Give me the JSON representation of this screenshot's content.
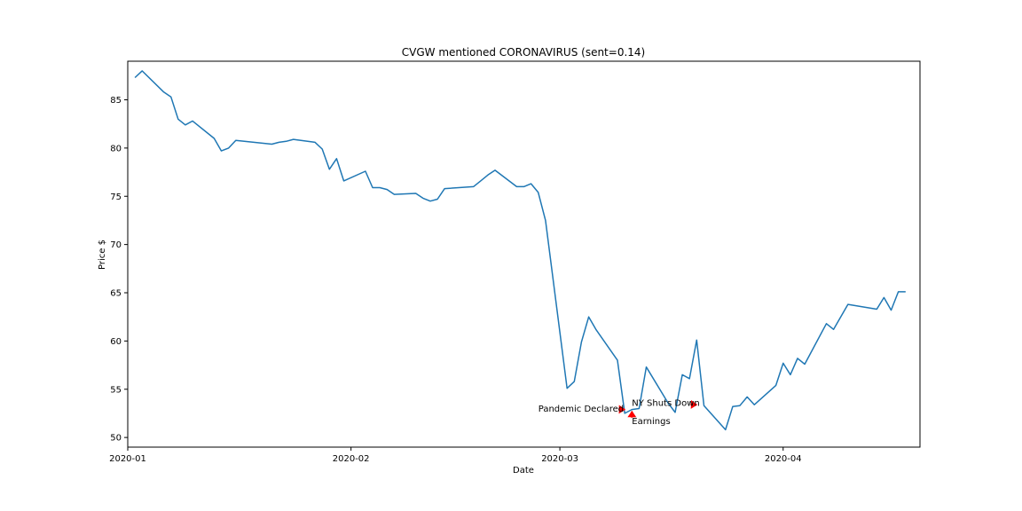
{
  "chart_data": {
    "type": "line",
    "title": "CVGW mentioned CORONAVIRUS (sent=0.14)",
    "xlabel": "Date",
    "ylabel": "Price $",
    "xlim": [
      "2020-01-01",
      "2020-04-20"
    ],
    "ylim": [
      49,
      89
    ],
    "grid": false,
    "legend": "none",
    "x_ticks": [
      {
        "date": "2020-01-01",
        "label": "2020-01"
      },
      {
        "date": "2020-02-01",
        "label": "2020-02"
      },
      {
        "date": "2020-03-01",
        "label": "2020-03"
      },
      {
        "date": "2020-04-01",
        "label": "2020-04"
      }
    ],
    "y_ticks": [
      50,
      55,
      60,
      65,
      70,
      75,
      80,
      85
    ],
    "series": [
      {
        "color": "#1f77b4",
        "points": [
          [
            "2020-01-02",
            87.3
          ],
          [
            "2020-01-03",
            88.0
          ],
          [
            "2020-01-06",
            85.8
          ],
          [
            "2020-01-07",
            85.3
          ],
          [
            "2020-01-08",
            83.0
          ],
          [
            "2020-01-09",
            82.4
          ],
          [
            "2020-01-10",
            82.8
          ],
          [
            "2020-01-13",
            81.0
          ],
          [
            "2020-01-14",
            79.7
          ],
          [
            "2020-01-15",
            80.0
          ],
          [
            "2020-01-16",
            80.8
          ],
          [
            "2020-01-21",
            80.4
          ],
          [
            "2020-01-22",
            80.6
          ],
          [
            "2020-01-23",
            80.7
          ],
          [
            "2020-01-24",
            80.9
          ],
          [
            "2020-01-27",
            80.6
          ],
          [
            "2020-01-28",
            79.9
          ],
          [
            "2020-01-29",
            77.8
          ],
          [
            "2020-01-30",
            78.9
          ],
          [
            "2020-01-31",
            76.6
          ],
          [
            "2020-02-03",
            77.6
          ],
          [
            "2020-02-04",
            75.9
          ],
          [
            "2020-02-05",
            75.9
          ],
          [
            "2020-02-06",
            75.7
          ],
          [
            "2020-02-07",
            75.2
          ],
          [
            "2020-02-10",
            75.3
          ],
          [
            "2020-02-11",
            74.8
          ],
          [
            "2020-02-12",
            74.5
          ],
          [
            "2020-02-13",
            74.7
          ],
          [
            "2020-02-14",
            75.8
          ],
          [
            "2020-02-18",
            76.0
          ],
          [
            "2020-02-19",
            76.6
          ],
          [
            "2020-02-20",
            77.2
          ],
          [
            "2020-02-21",
            77.7
          ],
          [
            "2020-02-24",
            76.0
          ],
          [
            "2020-02-25",
            76.0
          ],
          [
            "2020-02-26",
            76.3
          ],
          [
            "2020-02-27",
            75.4
          ],
          [
            "2020-02-28",
            72.5
          ],
          [
            "2020-03-02",
            55.1
          ],
          [
            "2020-03-03",
            55.8
          ],
          [
            "2020-03-04",
            59.9
          ],
          [
            "2020-03-05",
            62.5
          ],
          [
            "2020-03-06",
            61.2
          ],
          [
            "2020-03-09",
            58.0
          ],
          [
            "2020-03-10",
            52.5
          ],
          [
            "2020-03-11",
            52.9
          ],
          [
            "2020-03-12",
            53.0
          ],
          [
            "2020-03-13",
            57.3
          ],
          [
            "2020-03-16",
            53.6
          ],
          [
            "2020-03-17",
            52.6
          ],
          [
            "2020-03-18",
            56.5
          ],
          [
            "2020-03-19",
            56.1
          ],
          [
            "2020-03-20",
            60.1
          ],
          [
            "2020-03-21",
            53.3
          ],
          [
            "2020-03-24",
            50.8
          ],
          [
            "2020-03-25",
            53.2
          ],
          [
            "2020-03-26",
            53.3
          ],
          [
            "2020-03-27",
            54.2
          ],
          [
            "2020-03-28",
            53.4
          ],
          [
            "2020-03-31",
            55.4
          ],
          [
            "2020-04-01",
            57.7
          ],
          [
            "2020-04-02",
            56.5
          ],
          [
            "2020-04-03",
            58.2
          ],
          [
            "2020-04-04",
            57.6
          ],
          [
            "2020-04-07",
            61.8
          ],
          [
            "2020-04-08",
            61.2
          ],
          [
            "2020-04-10",
            63.8
          ],
          [
            "2020-04-14",
            63.3
          ],
          [
            "2020-04-15",
            64.5
          ],
          [
            "2020-04-16",
            63.2
          ],
          [
            "2020-04-17",
            65.1
          ],
          [
            "2020-04-18",
            65.1
          ]
        ]
      }
    ],
    "annotations": [
      {
        "text": "Pandemic Declared",
        "point": [
          "2020-03-10",
          52.9
        ],
        "text_at": [
          "2020-02-27",
          53.0
        ]
      },
      {
        "text": "NY Shuts Down",
        "point": [
          "2020-03-20",
          53.4
        ],
        "text_at": [
          "2020-03-11",
          53.6
        ]
      },
      {
        "text": "Earnings",
        "point": [
          "2020-03-11",
          52.7
        ],
        "text_at": [
          "2020-03-11",
          51.7
        ]
      }
    ],
    "annotation_arrow_color": "#ff0000"
  }
}
